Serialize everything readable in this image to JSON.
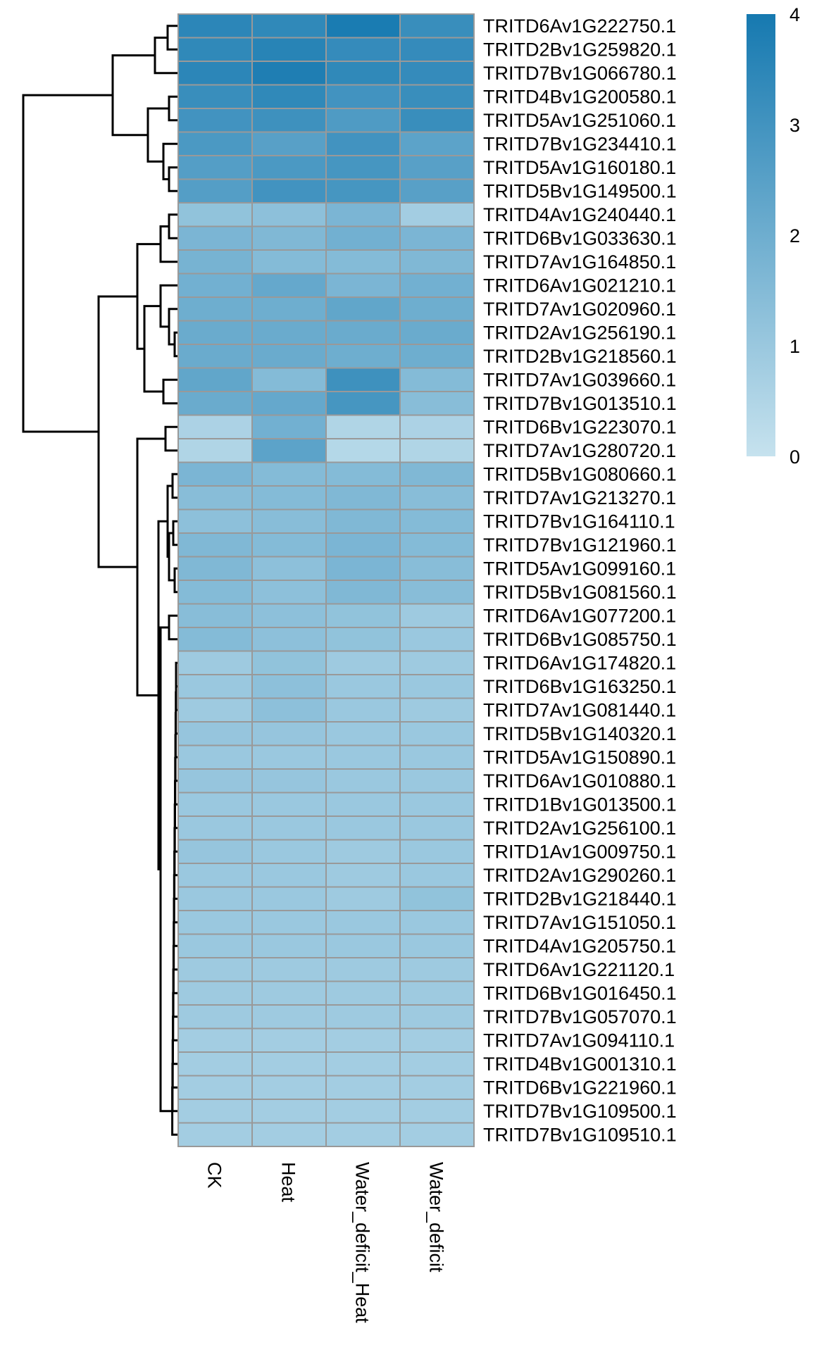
{
  "chart_data": {
    "type": "heatmap",
    "title": "",
    "columns": [
      "CK",
      "Heat",
      "Water_deficit_Heat",
      "Water_deficit"
    ],
    "rows": [
      "TRITD6Av1G222750.1",
      "TRITD2Bv1G259820.1",
      "TRITD7Bv1G066780.1",
      "TRITD4Bv1G200580.1",
      "TRITD5Av1G251060.1",
      "TRITD7Bv1G234410.1",
      "TRITD5Av1G160180.1",
      "TRITD5Bv1G149500.1",
      "TRITD4Av1G240440.1",
      "TRITD6Bv1G033630.1",
      "TRITD7Av1G164850.1",
      "TRITD6Av1G021210.1",
      "TRITD7Av1G020960.1",
      "TRITD2Av1G256190.1",
      "TRITD2Bv1G218560.1",
      "TRITD7Av1G039660.1",
      "TRITD7Bv1G013510.1",
      "TRITD6Bv1G223070.1",
      "TRITD7Av1G280720.1",
      "TRITD5Bv1G080660.1",
      "TRITD7Av1G213270.1",
      "TRITD7Bv1G164110.1",
      "TRITD7Bv1G121960.1",
      "TRITD5Av1G099160.1",
      "TRITD5Bv1G081560.1",
      "TRITD6Av1G077200.1",
      "TRITD6Bv1G085750.1",
      "TRITD6Av1G174820.1",
      "TRITD6Bv1G163250.1",
      "TRITD7Av1G081440.1",
      "TRITD5Bv1G140320.1",
      "TRITD5Av1G150890.1",
      "TRITD6Av1G010880.1",
      "TRITD1Bv1G013500.1",
      "TRITD2Av1G256100.1",
      "TRITD1Av1G009750.1",
      "TRITD2Av1G290260.1",
      "TRITD2Bv1G218440.1",
      "TRITD7Av1G151050.1",
      "TRITD4Av1G205750.1",
      "TRITD6Av1G221120.1",
      "TRITD6Bv1G016450.1",
      "TRITD7Bv1G057070.1",
      "TRITD7Av1G094110.1",
      "TRITD4Bv1G001310.1",
      "TRITD6Bv1G221960.1",
      "TRITD7Bv1G109500.1",
      "TRITD7Bv1G109510.1"
    ],
    "values": [
      [
        3.5,
        3.4,
        3.9,
        3.2
      ],
      [
        3.4,
        3.6,
        3.3,
        3.3
      ],
      [
        3.5,
        3.8,
        3.4,
        3.3
      ],
      [
        3.2,
        3.4,
        3.0,
        3.2
      ],
      [
        3.0,
        3.1,
        2.7,
        3.2
      ],
      [
        2.8,
        2.5,
        3.0,
        2.4
      ],
      [
        2.6,
        2.8,
        2.9,
        2.5
      ],
      [
        2.6,
        3.0,
        2.9,
        2.5
      ],
      [
        1.2,
        1.3,
        1.7,
        0.8
      ],
      [
        1.7,
        1.6,
        1.9,
        1.7
      ],
      [
        1.8,
        1.5,
        1.5,
        1.6
      ],
      [
        1.9,
        2.2,
        1.7,
        1.9
      ],
      [
        2.0,
        2.0,
        2.3,
        2.0
      ],
      [
        2.1,
        2.1,
        2.1,
        2.1
      ],
      [
        2.1,
        2.1,
        2.0,
        2.0
      ],
      [
        2.3,
        1.5,
        3.1,
        1.5
      ],
      [
        2.1,
        2.2,
        2.9,
        1.4
      ],
      [
        0.6,
        1.9,
        0.5,
        0.6
      ],
      [
        0.5,
        2.4,
        0.4,
        0.5
      ],
      [
        1.7,
        1.5,
        1.5,
        1.6
      ],
      [
        1.4,
        1.5,
        1.6,
        1.4
      ],
      [
        1.3,
        1.4,
        1.6,
        1.5
      ],
      [
        1.6,
        1.5,
        1.7,
        1.5
      ],
      [
        1.6,
        1.3,
        1.7,
        1.4
      ],
      [
        1.5,
        1.3,
        1.6,
        1.4
      ],
      [
        1.4,
        1.3,
        1.2,
        0.9
      ],
      [
        1.5,
        1.3,
        1.2,
        1.0
      ],
      [
        0.9,
        1.2,
        0.9,
        0.9
      ],
      [
        1.0,
        1.3,
        1.0,
        1.0
      ],
      [
        0.9,
        1.3,
        1.0,
        0.9
      ],
      [
        1.1,
        1.1,
        1.0,
        1.0
      ],
      [
        1.0,
        1.0,
        1.0,
        1.0
      ],
      [
        1.1,
        1.1,
        1.0,
        1.0
      ],
      [
        1.0,
        1.0,
        1.0,
        1.0
      ],
      [
        1.0,
        1.0,
        1.0,
        1.0
      ],
      [
        1.1,
        1.0,
        0.9,
        1.0
      ],
      [
        1.0,
        1.0,
        0.9,
        1.0
      ],
      [
        1.0,
        1.0,
        0.9,
        1.2
      ],
      [
        1.0,
        1.0,
        1.0,
        1.0
      ],
      [
        1.0,
        1.0,
        1.0,
        1.0
      ],
      [
        0.9,
        0.9,
        0.9,
        0.9
      ],
      [
        0.9,
        0.9,
        0.9,
        0.9
      ],
      [
        0.9,
        0.9,
        0.9,
        0.9
      ],
      [
        0.8,
        0.8,
        0.8,
        0.8
      ],
      [
        0.8,
        0.8,
        0.8,
        0.8
      ],
      [
        0.8,
        0.8,
        0.8,
        0.8
      ],
      [
        0.8,
        0.8,
        0.8,
        0.8
      ],
      [
        0.8,
        0.8,
        0.8,
        0.8
      ]
    ],
    "color_scale": {
      "min": 0,
      "max": 4,
      "ticks": [
        "0",
        "1",
        "2",
        "3",
        "4"
      ],
      "low_color": "#C6E2EE",
      "high_color": "#1679B0"
    },
    "cell_border_color": "#999999",
    "dendrogram_color": "#000000",
    "row_dendrogram": true,
    "column_dendrogram": false,
    "legend_position": "right"
  }
}
